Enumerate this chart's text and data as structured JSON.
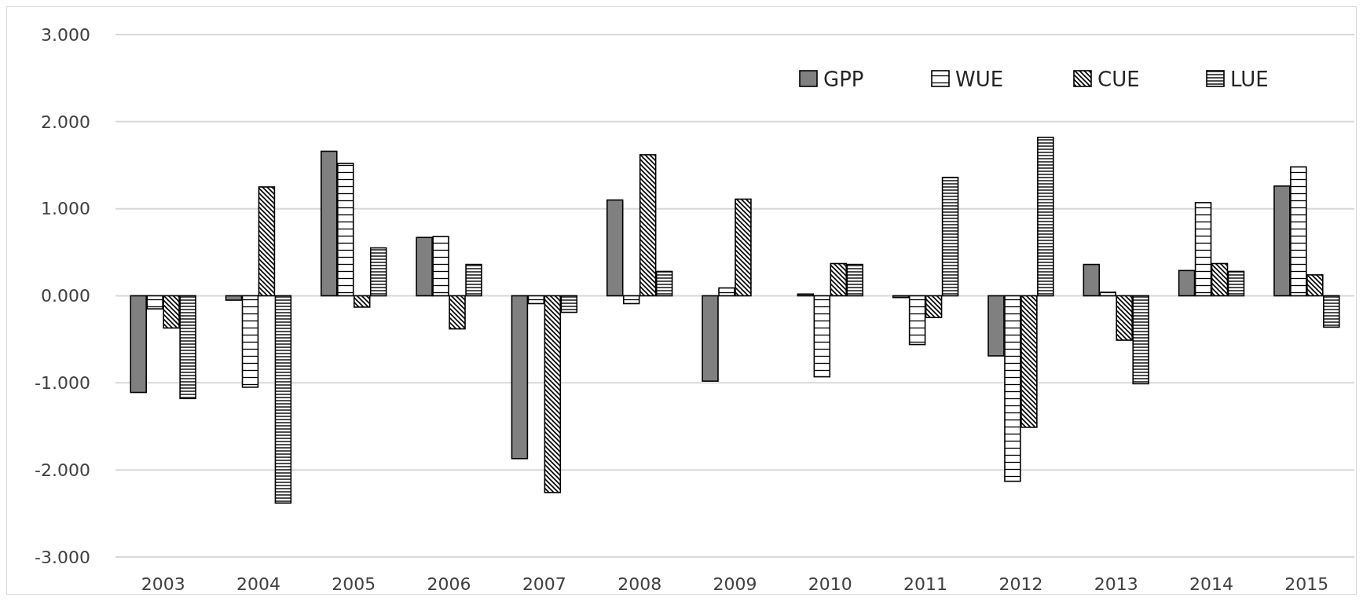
{
  "chart_data": {
    "type": "bar",
    "categories": [
      "2003",
      "2004",
      "2005",
      "2006",
      "2007",
      "2008",
      "2009",
      "2010",
      "2011",
      "2012",
      "2013",
      "2014",
      "2015"
    ],
    "series": [
      {
        "name": "GPP",
        "color": "#808080",
        "values": [
          -1.11,
          -0.05,
          1.66,
          0.67,
          -1.87,
          1.1,
          -0.98,
          0.02,
          -0.02,
          -0.69,
          0.36,
          0.29,
          1.26
        ]
      },
      {
        "name": "WUE",
        "color": "#000000",
        "values": [
          -0.15,
          -1.05,
          1.52,
          0.68,
          -0.09,
          -0.09,
          0.09,
          -0.93,
          -0.56,
          -2.13,
          0.04,
          1.07,
          1.48
        ]
      },
      {
        "name": "CUE",
        "color": "#000000",
        "values": [
          -0.37,
          1.25,
          -0.13,
          -0.38,
          -2.26,
          1.62,
          1.11,
          0.37,
          -0.25,
          -1.51,
          -0.51,
          0.37,
          0.24
        ]
      },
      {
        "name": "LUE",
        "color": "#000000",
        "values": [
          -1.18,
          -2.38,
          0.55,
          0.36,
          -0.19,
          0.28,
          0,
          0.36,
          1.36,
          1.82,
          -1.01,
          0.28,
          -0.36
        ]
      }
    ],
    "ylim": [
      -3,
      3
    ],
    "yticks": [
      {
        "value": -3,
        "label": "-3.000"
      },
      {
        "value": -2,
        "label": "-2.000"
      },
      {
        "value": -1,
        "label": "-1.000"
      },
      {
        "value": 0,
        "label": "0.000"
      },
      {
        "value": 1,
        "label": "1.000"
      },
      {
        "value": 2,
        "label": "2.000"
      },
      {
        "value": 3,
        "label": "3.000"
      }
    ],
    "grid": "y",
    "legend": "top right"
  }
}
